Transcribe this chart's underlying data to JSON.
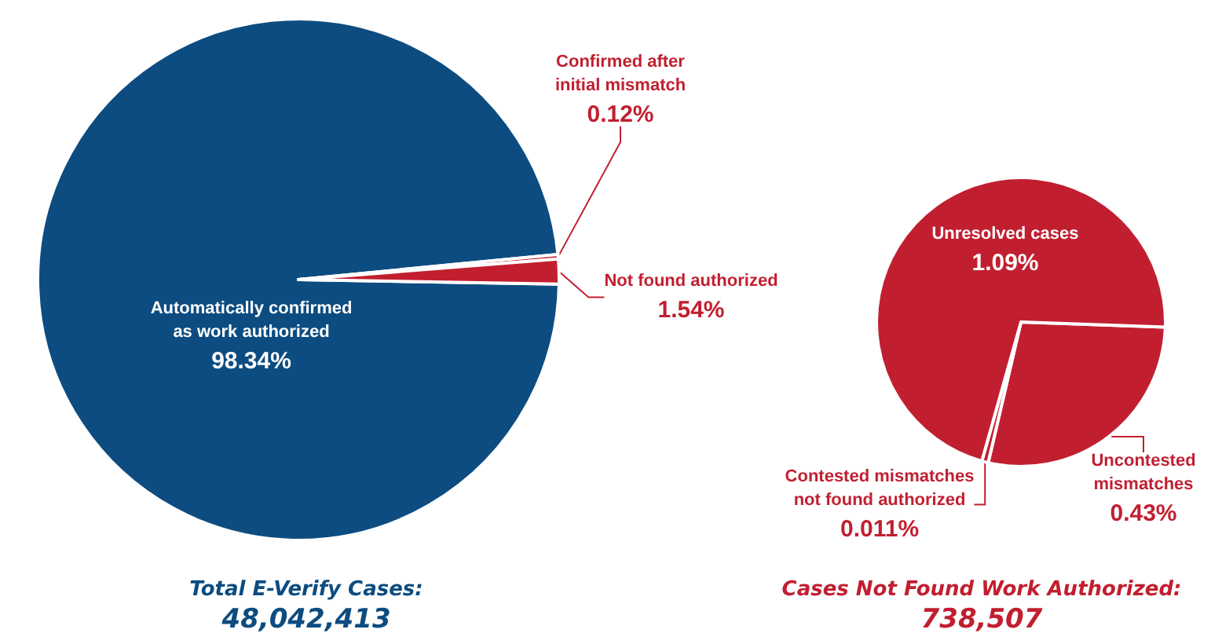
{
  "chart_data": [
    {
      "type": "pie",
      "categories": [
        "Automatically confirmed as work authorized",
        "Confirmed after initial mismatch",
        "Not found authorized"
      ],
      "values": [
        98.34,
        0.12,
        1.54
      ],
      "value_labels": [
        "98.34%",
        "0.12%",
        "1.54%"
      ],
      "colors": [
        "#0d4c80",
        "#c11f30",
        "#c11f30"
      ],
      "legend": false,
      "annotations": [
        "Total E-Verify Cases:",
        "48,042,413"
      ]
    },
    {
      "type": "pie",
      "categories": [
        "Uncontested mismatches",
        "Contested mismatches not found authorized",
        "Unresolved cases"
      ],
      "values": [
        0.43,
        0.011,
        1.09
      ],
      "value_labels": [
        "0.43%",
        "0.011%",
        "1.09%"
      ],
      "colors": [
        "#c11f30",
        "#c11f30",
        "#c11f30"
      ],
      "legend": false,
      "annotations": [
        "Cases Not Found Work Authorized:",
        "738,507"
      ]
    }
  ]
}
